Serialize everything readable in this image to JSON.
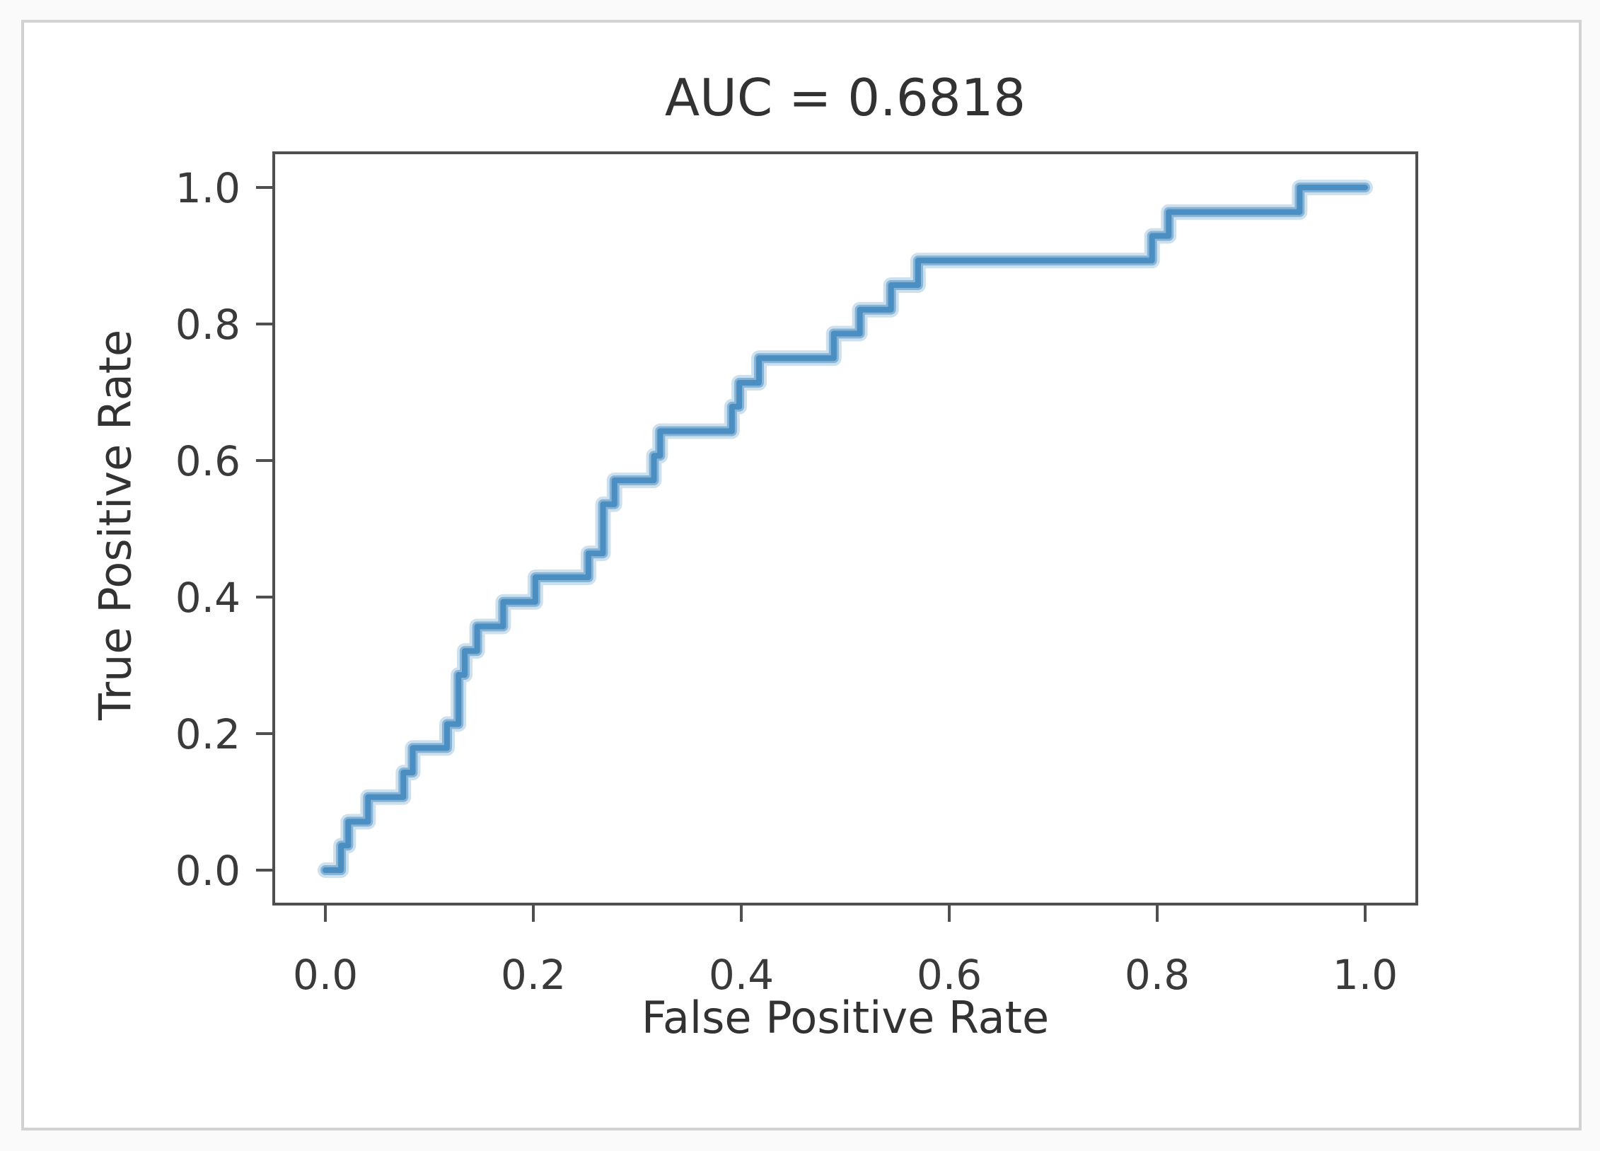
{
  "figure": {
    "title": "AUC = 0.6818",
    "xlabel": "False Positive Rate",
    "ylabel": "True Positive Rate"
  },
  "chart_data": {
    "type": "line",
    "subtype": "roc-step-curve",
    "title": "AUC = 0.6818",
    "auc": 0.6818,
    "xlabel": "False Positive Rate",
    "ylabel": "True Positive Rate",
    "xlim": [
      -0.05,
      1.05
    ],
    "ylim": [
      -0.05,
      1.05
    ],
    "xticks": [
      0.0,
      0.2,
      0.4,
      0.6,
      0.8,
      1.0
    ],
    "yticks": [
      0.0,
      0.2,
      0.4,
      0.6,
      0.8,
      1.0
    ],
    "grid": false,
    "legend": "none",
    "series": [
      {
        "name": "ROC curve",
        "color": "#4a8ec2",
        "points_fpr_tpr": [
          [
            0.0,
            0.0
          ],
          [
            0.015,
            0.0
          ],
          [
            0.015,
            0.036
          ],
          [
            0.022,
            0.036
          ],
          [
            0.022,
            0.071
          ],
          [
            0.041,
            0.071
          ],
          [
            0.041,
            0.107
          ],
          [
            0.075,
            0.107
          ],
          [
            0.075,
            0.143
          ],
          [
            0.084,
            0.143
          ],
          [
            0.084,
            0.179
          ],
          [
            0.117,
            0.179
          ],
          [
            0.117,
            0.214
          ],
          [
            0.128,
            0.214
          ],
          [
            0.128,
            0.286
          ],
          [
            0.134,
            0.286
          ],
          [
            0.134,
            0.321
          ],
          [
            0.146,
            0.321
          ],
          [
            0.146,
            0.357
          ],
          [
            0.171,
            0.357
          ],
          [
            0.171,
            0.393
          ],
          [
            0.202,
            0.393
          ],
          [
            0.202,
            0.429
          ],
          [
            0.253,
            0.429
          ],
          [
            0.253,
            0.464
          ],
          [
            0.267,
            0.464
          ],
          [
            0.267,
            0.536
          ],
          [
            0.278,
            0.536
          ],
          [
            0.278,
            0.571
          ],
          [
            0.316,
            0.571
          ],
          [
            0.316,
            0.607
          ],
          [
            0.322,
            0.607
          ],
          [
            0.322,
            0.643
          ],
          [
            0.391,
            0.643
          ],
          [
            0.391,
            0.679
          ],
          [
            0.398,
            0.679
          ],
          [
            0.398,
            0.714
          ],
          [
            0.417,
            0.714
          ],
          [
            0.417,
            0.75
          ],
          [
            0.489,
            0.75
          ],
          [
            0.489,
            0.786
          ],
          [
            0.514,
            0.786
          ],
          [
            0.514,
            0.821
          ],
          [
            0.544,
            0.821
          ],
          [
            0.544,
            0.857
          ],
          [
            0.57,
            0.857
          ],
          [
            0.57,
            0.893
          ],
          [
            0.795,
            0.893
          ],
          [
            0.795,
            0.929
          ],
          [
            0.811,
            0.929
          ],
          [
            0.811,
            0.964
          ],
          [
            0.937,
            0.964
          ],
          [
            0.937,
            1.0
          ],
          [
            1.0,
            1.0
          ]
        ]
      }
    ]
  },
  "colors": {
    "curve_core": "#4a8ec2",
    "curve_mid": "rgba(77,142,194,0.55)",
    "curve_halo": "rgba(77,142,194,0.28)",
    "spine": "#4f4f4f",
    "tick_label": "#3a3a3a",
    "text": "#323232",
    "frame_border": "#d2d2d2",
    "background": "#ffffff"
  }
}
